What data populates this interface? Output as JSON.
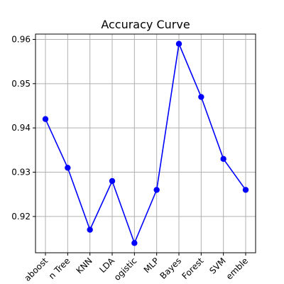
{
  "chart_data": {
    "type": "line",
    "title": "Accuracy Curve",
    "xlabel": "",
    "ylabel": "",
    "categories": [
      "Adaboost",
      "Decision Tree",
      "KNN",
      "LDA",
      "Logistic",
      "MLP",
      "Naive Bayes",
      "Random Forest",
      "SVM",
      "Ensemble"
    ],
    "visible_tick_labels": [
      "aboost",
      "n Tree",
      "KNN",
      "LDA",
      "ogistic",
      "MLP",
      "Bayes",
      "Forest",
      "SVM",
      "emble"
    ],
    "series": [
      {
        "values": [
          0.942,
          0.931,
          0.917,
          0.928,
          0.914,
          0.926,
          0.959,
          0.947,
          0.933,
          0.926
        ],
        "color": "#0000ff",
        "marker": "circle"
      }
    ],
    "yticks": [
      0.92,
      0.93,
      0.94,
      0.95,
      0.96
    ],
    "ylim": [
      0.9118,
      0.9612
    ],
    "grid": true
  }
}
